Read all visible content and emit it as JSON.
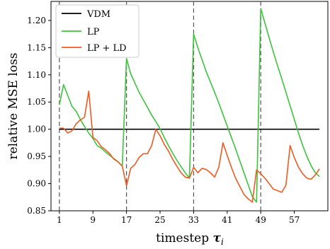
{
  "chart_data": {
    "type": "line",
    "xlabel": "timestep",
    "xlabel_symbol": "τ",
    "xlabel_subscript": "i",
    "ylabel": "relative MSE loss",
    "xlim": [
      -1,
      65
    ],
    "ylim": [
      0.85,
      1.235
    ],
    "xticks": [
      1,
      9,
      17,
      25,
      33,
      41,
      49,
      57
    ],
    "yticks": [
      0.85,
      0.9,
      0.95,
      1.0,
      1.05,
      1.1,
      1.15,
      1.2
    ],
    "ytick_labels": [
      "0.85",
      "0.90",
      "0.95",
      "1.00",
      "1.05",
      "1.10",
      "1.15",
      "1.20"
    ],
    "vlines": [
      1,
      17,
      33,
      49
    ],
    "legend": {
      "position": "top-left"
    },
    "grid": false,
    "series": [
      {
        "name": "VDM",
        "color": "#000000",
        "x": [
          1,
          63
        ],
        "values": [
          1.0,
          1.0
        ]
      },
      {
        "name": "LP",
        "color": "#3cc43c",
        "x": [
          1,
          2,
          3,
          4,
          5,
          6,
          7,
          8,
          9,
          10,
          11,
          12,
          13,
          14,
          15,
          16,
          17,
          18,
          19,
          20,
          21,
          22,
          23,
          24,
          25,
          26,
          27,
          28,
          29,
          30,
          31,
          32,
          33,
          34,
          35,
          36,
          37,
          38,
          39,
          40,
          41,
          42,
          43,
          44,
          45,
          46,
          47,
          48,
          49,
          50,
          51,
          52,
          53,
          54,
          55,
          56,
          57,
          58,
          59,
          60,
          61,
          62,
          63
        ],
        "values": [
          1.045,
          1.082,
          1.062,
          1.042,
          1.033,
          1.018,
          1.005,
          0.993,
          0.983,
          0.97,
          0.965,
          0.958,
          0.952,
          0.946,
          0.94,
          0.932,
          1.13,
          1.102,
          1.085,
          1.068,
          1.054,
          1.04,
          1.026,
          1.014,
          1.001,
          0.985,
          0.97,
          0.956,
          0.943,
          0.931,
          0.92,
          0.91,
          1.175,
          1.15,
          1.128,
          1.106,
          1.087,
          1.068,
          1.048,
          1.027,
          1.006,
          0.985,
          0.964,
          0.942,
          0.92,
          0.898,
          0.876,
          0.866,
          1.222,
          1.195,
          1.168,
          1.142,
          1.117,
          1.093,
          1.068,
          1.043,
          1.018,
          0.993,
          0.97,
          0.95,
          0.933,
          0.92,
          0.913
        ]
      },
      {
        "name": "LP + LD",
        "color": "#f05a1e",
        "x": [
          1,
          2,
          3,
          4,
          5,
          6,
          7,
          8,
          9,
          10,
          11,
          12,
          13,
          14,
          15,
          16,
          17,
          18,
          19,
          20,
          21,
          22,
          23,
          24,
          25,
          26,
          27,
          28,
          29,
          30,
          31,
          32,
          33,
          34,
          35,
          36,
          37,
          38,
          39,
          40,
          41,
          42,
          43,
          44,
          45,
          46,
          47,
          48,
          49,
          50,
          51,
          52,
          53,
          54,
          55,
          56,
          57,
          58,
          59,
          60,
          61,
          62,
          63
        ],
        "values": [
          1.002,
          1.002,
          0.993,
          0.997,
          1.01,
          1.017,
          1.022,
          1.07,
          0.985,
          0.979,
          0.968,
          0.962,
          0.955,
          0.945,
          0.94,
          0.932,
          0.896,
          0.928,
          0.935,
          0.948,
          0.955,
          0.955,
          0.97,
          1.0,
          0.988,
          0.972,
          0.96,
          0.945,
          0.932,
          0.92,
          0.912,
          0.91,
          0.93,
          0.92,
          0.928,
          0.926,
          0.92,
          0.912,
          0.93,
          0.975,
          0.952,
          0.93,
          0.91,
          0.895,
          0.88,
          0.872,
          0.866,
          0.925,
          0.918,
          0.91,
          0.9,
          0.89,
          0.887,
          0.884,
          0.897,
          0.97,
          0.948,
          0.93,
          0.918,
          0.91,
          0.908,
          0.916,
          0.927
        ]
      }
    ]
  }
}
